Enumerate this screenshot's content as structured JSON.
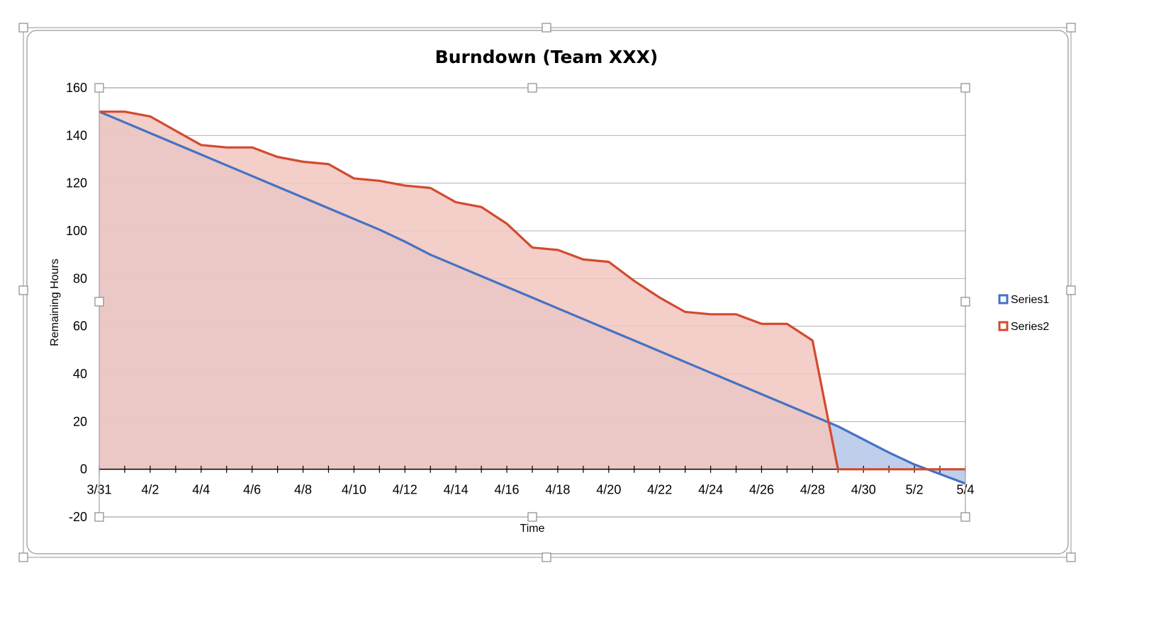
{
  "chart_data": {
    "type": "area",
    "title": "Burndown (Team XXX)",
    "xlabel": "Time",
    "ylabel": "Remaining Hours",
    "ylim": [
      -20,
      160
    ],
    "yticks": [
      160,
      140,
      120,
      100,
      80,
      60,
      40,
      20,
      0,
      -20
    ],
    "x_day_range": [
      "3/31",
      "5/4"
    ],
    "xtick_labels": [
      "3/31",
      "4/2",
      "4/4",
      "4/6",
      "4/8",
      "4/10",
      "4/12",
      "4/14",
      "4/16",
      "4/18",
      "4/20",
      "4/22",
      "4/24",
      "4/26",
      "4/28",
      "4/30",
      "5/2",
      "5/4"
    ],
    "grid": true,
    "legend_position": "right",
    "series": [
      {
        "name": "Series1",
        "color": "#4472C4",
        "fill": "#B4C7E7",
        "x": [
          "3/31",
          "4/1",
          "4/2",
          "4/3",
          "4/4",
          "4/5",
          "4/6",
          "4/7",
          "4/8",
          "4/9",
          "4/10",
          "4/11",
          "4/12",
          "4/13",
          "4/14",
          "4/15",
          "4/16",
          "4/17",
          "4/18",
          "4/19",
          "4/20",
          "4/21",
          "4/22",
          "4/23",
          "4/24",
          "4/25",
          "4/26",
          "4/27",
          "4/28",
          "4/29",
          "4/30",
          "5/1",
          "5/2",
          "5/3",
          "5/4"
        ],
        "values": [
          150,
          145.5,
          141,
          136.5,
          132,
          127.5,
          123,
          118.5,
          114,
          109.5,
          105,
          100.5,
          95.5,
          90,
          85.5,
          81,
          76.5,
          72,
          67.5,
          63,
          58.5,
          54,
          49.5,
          45,
          40.5,
          36,
          31.5,
          27,
          22.5,
          18,
          12.5,
          7,
          2,
          -2,
          -6
        ]
      },
      {
        "name": "Series2",
        "color": "#D24A2F",
        "fill": "#F2C5BE",
        "x": [
          "3/31",
          "4/1",
          "4/2",
          "4/3",
          "4/4",
          "4/5",
          "4/6",
          "4/7",
          "4/8",
          "4/9",
          "4/10",
          "4/11",
          "4/12",
          "4/13",
          "4/14",
          "4/15",
          "4/16",
          "4/17",
          "4/18",
          "4/19",
          "4/20",
          "4/21",
          "4/22",
          "4/23",
          "4/24",
          "4/25",
          "4/26",
          "4/27",
          "4/28",
          "4/29",
          "4/30",
          "5/1",
          "5/2",
          "5/3",
          "5/4"
        ],
        "values": [
          150,
          150,
          148,
          142,
          136,
          135,
          135,
          131,
          129,
          128,
          122,
          121,
          119,
          118,
          112,
          110,
          103,
          93,
          92,
          88,
          87,
          79,
          72,
          66,
          65,
          65,
          61,
          61,
          54,
          0,
          0,
          0,
          0,
          0,
          0
        ]
      }
    ]
  }
}
